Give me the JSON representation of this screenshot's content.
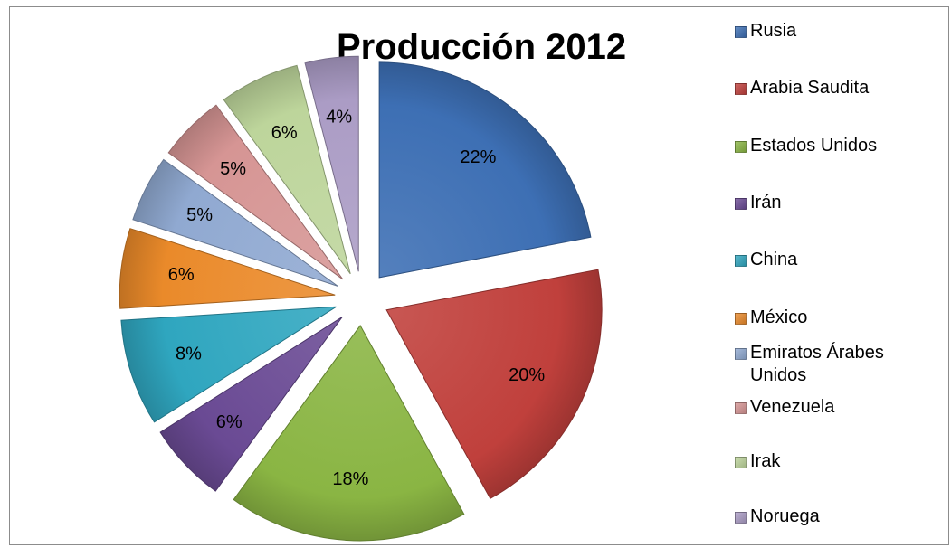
{
  "chart_data": {
    "type": "pie",
    "title": "Producción 2012",
    "labels": [
      "Rusia",
      "Arabia Saudita",
      "Estados Unidos",
      "Irán",
      "China",
      "México",
      "Emiratos Árabes Unidos",
      "Venezuela",
      "Irak",
      "Noruega"
    ],
    "values": [
      22,
      20,
      18,
      6,
      8,
      6,
      5,
      5,
      6,
      4
    ],
    "data_labels": [
      "22%",
      "20%",
      "18%",
      "6%",
      "8%",
      "6%",
      "5%",
      "5%",
      "6%",
      "4%"
    ],
    "colors": [
      "#3d6fb4",
      "#c0403c",
      "#8ab543",
      "#6a4a94",
      "#2fa6bf",
      "#ea8a2a",
      "#90a9d1",
      "#d69594",
      "#bdd59b",
      "#ab9cc5"
    ],
    "exploded": true,
    "legend_position": "right"
  }
}
